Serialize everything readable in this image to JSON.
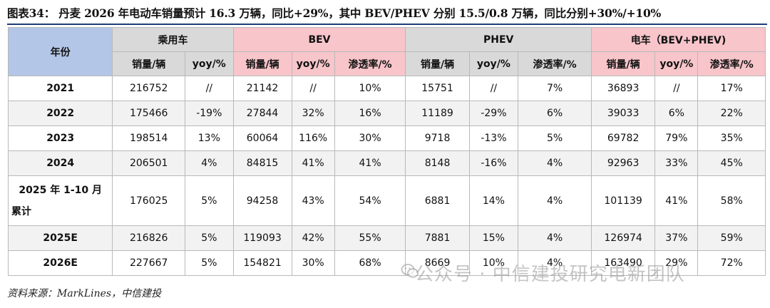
{
  "title": "图表34：   丹麦 2026 年电动车销量预计 16.3 万辆，同比+29%，其中 BEV/PHEV 分别 15.5/0.8 万辆，同比分别+30%/+10%",
  "header": {
    "year": "年份",
    "groups": [
      "乘用车",
      "BEV",
      "PHEV",
      "电车（BEV+PHEV)"
    ],
    "sub": [
      "销量/辆",
      "yoy/%",
      "销量/辆",
      "yoy/%",
      "渗透率/%",
      "销量/辆",
      "yoy/%",
      "渗透率/%",
      "销量/辆",
      "yoy/%",
      "渗透率/%"
    ]
  },
  "rows": [
    {
      "year": "2021",
      "cells": [
        "216752",
        "//",
        "21142",
        "//",
        "10%",
        "15751",
        "//",
        "7%",
        "36893",
        "//",
        "17%"
      ]
    },
    {
      "year": "2022",
      "cells": [
        "175466",
        "-19%",
        "27844",
        "32%",
        "16%",
        "11189",
        "-29%",
        "6%",
        "39033",
        "6%",
        "22%"
      ]
    },
    {
      "year": "2023",
      "cells": [
        "198514",
        "13%",
        "60064",
        "116%",
        "30%",
        "9718",
        "-13%",
        "5%",
        "69782",
        "79%",
        "35%"
      ]
    },
    {
      "year": "2024",
      "cells": [
        "206501",
        "4%",
        "84815",
        "41%",
        "41%",
        "8148",
        "-16%",
        "4%",
        "92963",
        "33%",
        "45%"
      ]
    },
    {
      "year_line1": "2025 年 1-10 月",
      "year_line2": "累计",
      "cells": [
        "176025",
        "5%",
        "94258",
        "43%",
        "54%",
        "6881",
        "14%",
        "4%",
        "101139",
        "41%",
        "58%"
      ]
    },
    {
      "year": "2025E",
      "cells": [
        "216826",
        "5%",
        "119093",
        "42%",
        "55%",
        "7881",
        "15%",
        "4%",
        "126974",
        "37%",
        "59%"
      ]
    },
    {
      "year": "2026E",
      "cells": [
        "227667",
        "5%",
        "154821",
        "30%",
        "68%",
        "8669",
        "10%",
        "4%",
        "163490",
        "29%",
        "72%"
      ]
    }
  ],
  "source": "资料来源：MarkLines，中信建投",
  "watermark": "公众号 · 中信建投研究电新团队"
}
